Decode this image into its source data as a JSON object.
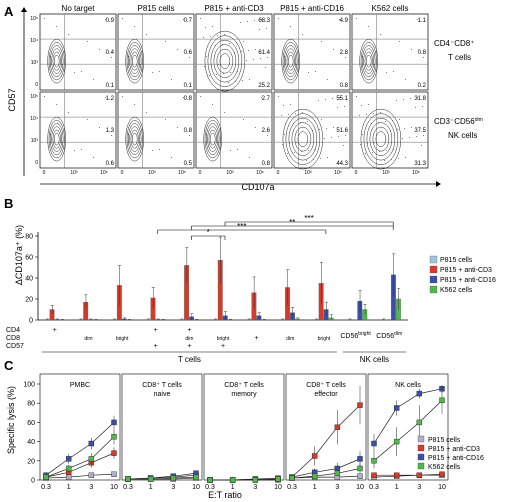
{
  "panelA": {
    "label": "A",
    "columns": [
      "No target",
      "P815 cells",
      "P815 + anti-CD3",
      "P815 + anti-CD16",
      "K562 cells"
    ],
    "rows": [
      {
        "label1": "CD4⁻CD8⁺",
        "label2": "T cells",
        "values": [
          [
            "0.9",
            "0.4",
            "0.1"
          ],
          [
            "0.7",
            "0.6",
            "0.1"
          ],
          [
            "68.3",
            "61.4",
            "25.2"
          ],
          [
            "4.9",
            "2.8",
            "0.8"
          ],
          [
            "1.1",
            "0.8",
            "0.2"
          ]
        ]
      },
      {
        "label1": "CD3⁻CD56",
        "label1_sup": "dim",
        "label2": "NK cells",
        "values": [
          [
            "1.2",
            "1.3",
            "0.6"
          ],
          [
            "0.8",
            "0.8",
            "0.5"
          ],
          [
            "2.7",
            "2.6",
            "0.8"
          ],
          [
            "55.1",
            "51.6",
            "44.3"
          ],
          [
            "31.8",
            "37.5",
            "31.3"
          ]
        ]
      }
    ],
    "ylabel": "CD57",
    "xlabel": "CD107a",
    "yticks": [
      "10⁵",
      "10⁴",
      "10³",
      "0"
    ],
    "xticks": [
      "0",
      "10³",
      "10⁵"
    ]
  },
  "panelB": {
    "label": "B",
    "ylabel": "ΔCD107a⁺ (%)",
    "ylim": [
      0,
      80
    ],
    "yticks": [
      0,
      20,
      40,
      60,
      80
    ],
    "legend": [
      {
        "name": "P815 cells",
        "color": "#a3c4de"
      },
      {
        "name": "P815 + anti-CD3",
        "color": "#d83a2a"
      },
      {
        "name": "P815 + anti-CD16",
        "color": "#3b4fa8"
      },
      {
        "name": "K562 cells",
        "color": "#4fb848"
      }
    ],
    "rowlabels": [
      "CD4",
      "CD8",
      "CD57"
    ],
    "marks": {
      "cd4": [
        "+",
        "",
        "",
        "+",
        "+",
        "",
        "",
        "",
        "",
        ""
      ],
      "cd8": [
        "",
        "+",
        "+",
        "",
        "+",
        "+",
        "+",
        "+",
        "+",
        ""
      ],
      "cd8_sub": [
        "",
        "dim",
        "bright",
        "",
        "dim",
        "bright",
        "",
        "dim",
        "bright",
        ""
      ],
      "cd57": [
        "",
        "",
        "",
        "+",
        "+",
        "+",
        "",
        "",
        "",
        ""
      ]
    },
    "nk_labels": [
      {
        "main": "CD56",
        "sup": "bright"
      },
      {
        "main": "CD56",
        "sup": "dim"
      }
    ],
    "groups": [
      "T cells",
      "NK cells"
    ],
    "significance": [
      "*",
      "***",
      "**",
      "***"
    ]
  },
  "chart_data": {
    "type": "bar",
    "categories": [
      "CD4+",
      "CD8dim",
      "CD8bright",
      "CD4+ CD57+",
      "CD4+ CD8dim CD57+",
      "CD8bright CD57+",
      "CD8+",
      "CD8dim",
      "CD8bright",
      "CD56bright",
      "CD56dim"
    ],
    "series": [
      {
        "name": "P815 cells",
        "values": [
          0.5,
          0.5,
          0.5,
          0.5,
          0.5,
          0.5,
          0.5,
          0.5,
          0.5,
          0.5,
          0.5
        ],
        "error": [
          0.5,
          0.5,
          0.5,
          0.5,
          0.5,
          0.5,
          0.5,
          0.5,
          0.5,
          0.5,
          0.5
        ]
      },
      {
        "name": "P815 + anti-CD3",
        "values": [
          10,
          17,
          33,
          21,
          52,
          57,
          26,
          31,
          35,
          0,
          0
        ],
        "error": [
          4,
          7,
          19,
          10,
          17,
          22,
          15,
          17,
          20,
          0,
          0
        ]
      },
      {
        "name": "P815 + anti-CD16",
        "values": [
          0.5,
          0.5,
          1,
          0.5,
          3,
          4,
          4,
          7,
          10,
          18,
          43
        ],
        "error": [
          0.5,
          0.5,
          1,
          0.5,
          3,
          4,
          3,
          5,
          7,
          10,
          20
        ]
      },
      {
        "name": "K562 cells",
        "values": [
          0.3,
          0.3,
          0.3,
          0.3,
          0.3,
          0.3,
          0.3,
          1,
          2,
          10,
          20
        ],
        "error": [
          0.3,
          0.3,
          0.3,
          0.3,
          0.3,
          0.3,
          0.3,
          1,
          3,
          5,
          10
        ]
      }
    ],
    "ylabel": "ΔCD107a⁺ (%)",
    "ylim": [
      0,
      80
    ]
  },
  "panelC": {
    "label": "C",
    "ylabel": "Specific lysis (%)",
    "xlabel": "E:T ratio",
    "ylim": [
      0,
      100
    ],
    "yticks": [
      0,
      20,
      40,
      60,
      80,
      100
    ],
    "xticks": [
      "0.3",
      "1",
      "3",
      "10"
    ],
    "legend": [
      {
        "name": "P815 cells",
        "color": "#b0b0c8"
      },
      {
        "name": "P815 + anti-CD3",
        "color": "#d83a2a"
      },
      {
        "name": "P815 + anti-CD16",
        "color": "#3b4fa8"
      },
      {
        "name": "K562 cells",
        "color": "#4fb848"
      }
    ],
    "subplots": [
      {
        "title1": "PMBC",
        "title2": "",
        "series": [
          [
            2,
            3,
            5,
            6
          ],
          [
            3,
            8,
            18,
            28
          ],
          [
            5,
            22,
            38,
            60
          ],
          [
            3,
            12,
            22,
            45
          ]
        ],
        "errors": [
          [
            1,
            1,
            1,
            2
          ],
          [
            2,
            3,
            5,
            6
          ],
          [
            3,
            5,
            6,
            7
          ],
          [
            2,
            4,
            6,
            8
          ]
        ]
      },
      {
        "title1": "CD8⁺ T cells",
        "title2": "naive",
        "series": [
          [
            1,
            1,
            1,
            2
          ],
          [
            1,
            2,
            3,
            5
          ],
          [
            1,
            2,
            4,
            7
          ],
          [
            1,
            1,
            2,
            3
          ]
        ],
        "errors": [
          [
            1,
            1,
            1,
            1
          ],
          [
            1,
            1,
            2,
            3
          ],
          [
            1,
            1,
            2,
            3
          ],
          [
            1,
            1,
            1,
            2
          ]
        ]
      },
      {
        "title1": "CD8⁺ T cells",
        "title2": "memory",
        "series": [
          [
            0,
            0,
            0,
            0
          ],
          [
            0,
            0,
            1,
            2
          ],
          [
            0,
            0,
            1,
            1
          ],
          [
            0,
            0,
            0,
            1
          ]
        ],
        "errors": [
          [
            0,
            0,
            0,
            0
          ],
          [
            0,
            0,
            1,
            1
          ],
          [
            0,
            0,
            1,
            1
          ],
          [
            0,
            0,
            0,
            1
          ]
        ]
      },
      {
        "title1": "CD8⁺ T cells",
        "title2": "effector",
        "series": [
          [
            2,
            3,
            3,
            4
          ],
          [
            3,
            25,
            55,
            78
          ],
          [
            3,
            8,
            12,
            22
          ],
          [
            2,
            4,
            7,
            12
          ]
        ],
        "errors": [
          [
            1,
            1,
            1,
            1
          ],
          [
            3,
            10,
            18,
            20
          ],
          [
            2,
            4,
            6,
            8
          ],
          [
            1,
            2,
            3,
            5
          ]
        ]
      },
      {
        "title1": "NK cells",
        "title2": "",
        "series": [
          [
            3,
            4,
            5,
            5
          ],
          [
            5,
            5,
            5,
            6
          ],
          [
            38,
            75,
            90,
            95
          ],
          [
            20,
            40,
            60,
            83
          ]
        ],
        "errors": [
          [
            1,
            1,
            1,
            1
          ],
          [
            2,
            2,
            2,
            2
          ],
          [
            10,
            8,
            5,
            4
          ],
          [
            8,
            15,
            18,
            14
          ]
        ]
      }
    ]
  }
}
